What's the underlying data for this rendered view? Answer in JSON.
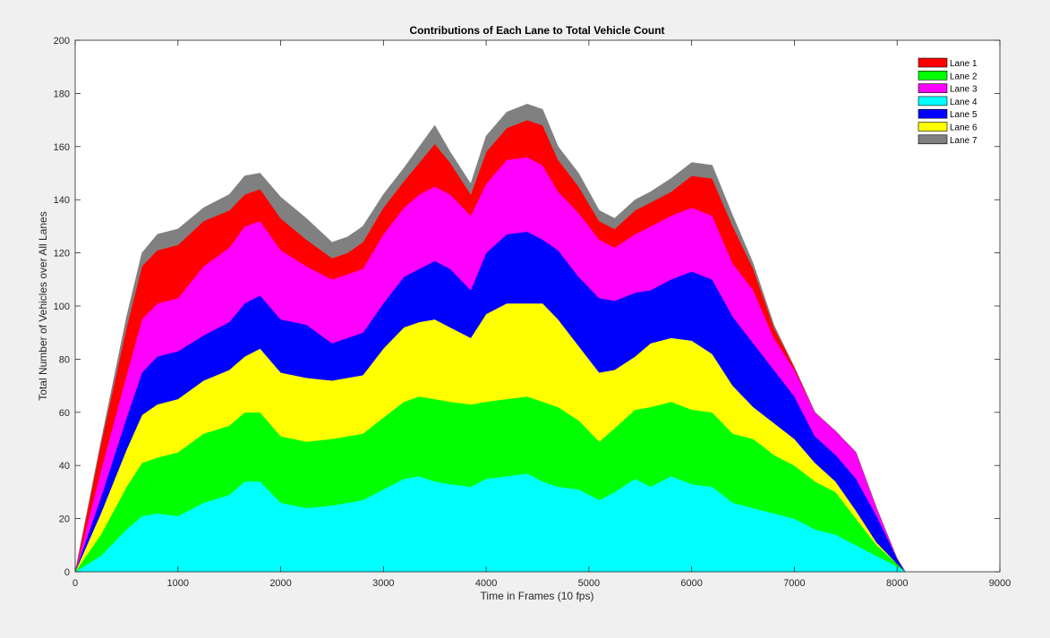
{
  "chart_data": {
    "type": "area",
    "stacked": true,
    "title": "Contributions of Each Lane to Total Vehicle Count",
    "xlabel": "Time in Frames (10 fps)",
    "ylabel": "Total Number of Vehicles over All Lanes",
    "xlim": [
      0,
      9000
    ],
    "ylim": [
      0,
      200
    ],
    "xticks": [
      0,
      1000,
      2000,
      3000,
      4000,
      5000,
      6000,
      7000,
      8000,
      9000
    ],
    "yticks": [
      0,
      20,
      40,
      60,
      80,
      100,
      120,
      140,
      160,
      180,
      200
    ],
    "grid": false,
    "legend_position": "top-right",
    "x": [
      0,
      250,
      500,
      650,
      800,
      1000,
      1250,
      1500,
      1650,
      1800,
      2000,
      2250,
      2500,
      2650,
      2800,
      3000,
      3200,
      3350,
      3500,
      3650,
      3850,
      4000,
      4200,
      4400,
      4550,
      4700,
      4900,
      5100,
      5250,
      5450,
      5600,
      5800,
      6000,
      6200,
      6400,
      6600,
      6800,
      7000,
      7200,
      7400,
      7600,
      7800,
      8000,
      8080
    ],
    "series": [
      {
        "name": "Lane 4",
        "color": "#00ffff",
        "values": [
          0,
          6,
          16,
          21,
          22,
          21,
          26,
          29,
          34,
          34,
          26,
          24,
          25,
          26,
          27,
          31,
          35,
          36,
          34,
          33,
          32,
          35,
          36,
          37,
          34,
          32,
          31,
          27,
          30,
          35,
          32,
          36,
          33,
          32,
          26,
          24,
          22,
          20,
          16,
          14,
          10,
          6,
          2,
          0
        ]
      },
      {
        "name": "Lane 2",
        "color": "#00ff00",
        "values": [
          0,
          8,
          16,
          20,
          21,
          24,
          26,
          26,
          26,
          26,
          25,
          25,
          25,
          25,
          25,
          27,
          29,
          30,
          31,
          31,
          31,
          29,
          29,
          29,
          30,
          30,
          26,
          22,
          24,
          26,
          30,
          28,
          28,
          28,
          26,
          26,
          22,
          20,
          18,
          16,
          10,
          4,
          1,
          0
        ]
      },
      {
        "name": "Lane 6",
        "color": "#ffff00",
        "values": [
          0,
          8,
          14,
          18,
          20,
          20,
          20,
          21,
          21,
          24,
          24,
          24,
          22,
          22,
          22,
          26,
          28,
          28,
          30,
          28,
          25,
          33,
          36,
          35,
          37,
          33,
          28,
          26,
          22,
          20,
          24,
          24,
          26,
          22,
          18,
          12,
          12,
          10,
          7,
          4,
          3,
          1,
          0,
          0
        ]
      },
      {
        "name": "Lane 5",
        "color": "#0000ff",
        "values": [
          0,
          6,
          12,
          16,
          18,
          18,
          17,
          18,
          20,
          20,
          20,
          20,
          14,
          15,
          16,
          17,
          19,
          20,
          22,
          22,
          18,
          23,
          26,
          27,
          24,
          26,
          26,
          28,
          26,
          24,
          20,
          22,
          26,
          28,
          26,
          24,
          20,
          16,
          10,
          10,
          12,
          10,
          2,
          0
        ]
      },
      {
        "name": "Lane 3",
        "color": "#ff00ff",
        "values": [
          0,
          10,
          16,
          20,
          20,
          20,
          26,
          28,
          29,
          28,
          26,
          22,
          24,
          24,
          24,
          26,
          26,
          28,
          28,
          28,
          28,
          26,
          28,
          28,
          28,
          22,
          24,
          22,
          20,
          22,
          24,
          24,
          24,
          24,
          20,
          20,
          12,
          10,
          9,
          9,
          10,
          3,
          0,
          0
        ]
      },
      {
        "name": "Lane 1",
        "color": "#ff0000",
        "values": [
          0,
          10,
          18,
          20,
          20,
          20,
          17,
          14,
          12,
          12,
          12,
          10,
          8,
          8,
          10,
          10,
          10,
          12,
          16,
          12,
          8,
          12,
          12,
          14,
          15,
          12,
          10,
          7,
          7,
          9,
          9,
          9,
          12,
          14,
          14,
          8,
          4,
          1,
          0,
          0,
          0,
          0,
          0,
          0
        ]
      },
      {
        "name": "Lane 7",
        "color": "#808080",
        "values": [
          0,
          1,
          4,
          5,
          6,
          6,
          5,
          6,
          7,
          6,
          8,
          8,
          6,
          6,
          6,
          5,
          5,
          6,
          7,
          4,
          4,
          6,
          6,
          6,
          6,
          5,
          5,
          4,
          4,
          4,
          4,
          5,
          5,
          5,
          4,
          2,
          1,
          0,
          0,
          0,
          0,
          0,
          0,
          0
        ]
      }
    ]
  }
}
